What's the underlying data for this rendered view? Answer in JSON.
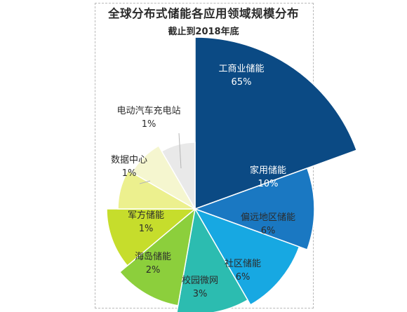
{
  "chart_data": {
    "type": "pie",
    "title": "全球分布式储能各应用领域规模分布",
    "subtitle": "截止到2018年底",
    "slices": [
      {
        "label": "工商业储能",
        "value": 65,
        "display": "65%",
        "color": "#0b4a84",
        "text_color": "#ffffff"
      },
      {
        "label": "家用储能",
        "value": 10,
        "display": "10%",
        "color": "#1a78c2",
        "text_color": "#ffffff"
      },
      {
        "label": "偏远地区储能",
        "value": 6,
        "display": "6%",
        "color": "#17a8e2",
        "text_color": "#2b2b2b"
      },
      {
        "label": "社区储能",
        "value": 6,
        "display": "6%",
        "color": "#2cbcb0",
        "text_color": "#2b2b2b"
      },
      {
        "label": "校园微网",
        "value": 3,
        "display": "3%",
        "color": "#8ccf3c",
        "text_color": "#2b2b2b"
      },
      {
        "label": "海岛储能",
        "value": 2,
        "display": "2%",
        "color": "#c6dd2c",
        "text_color": "#2b2b2b"
      },
      {
        "label": "军方储能",
        "value": 1,
        "display": "1%",
        "color": "#ecf08e",
        "text_color": "#2b2b2b"
      },
      {
        "label": "数据中心",
        "value": 1,
        "display": "1%",
        "color": "#f5f6cf",
        "text_color": "#2b2b2b"
      },
      {
        "label": "电动汽车充电站",
        "value": 1,
        "display": "1%",
        "color": "#e9e9e9",
        "text_color": "#2b2b2b"
      }
    ]
  }
}
